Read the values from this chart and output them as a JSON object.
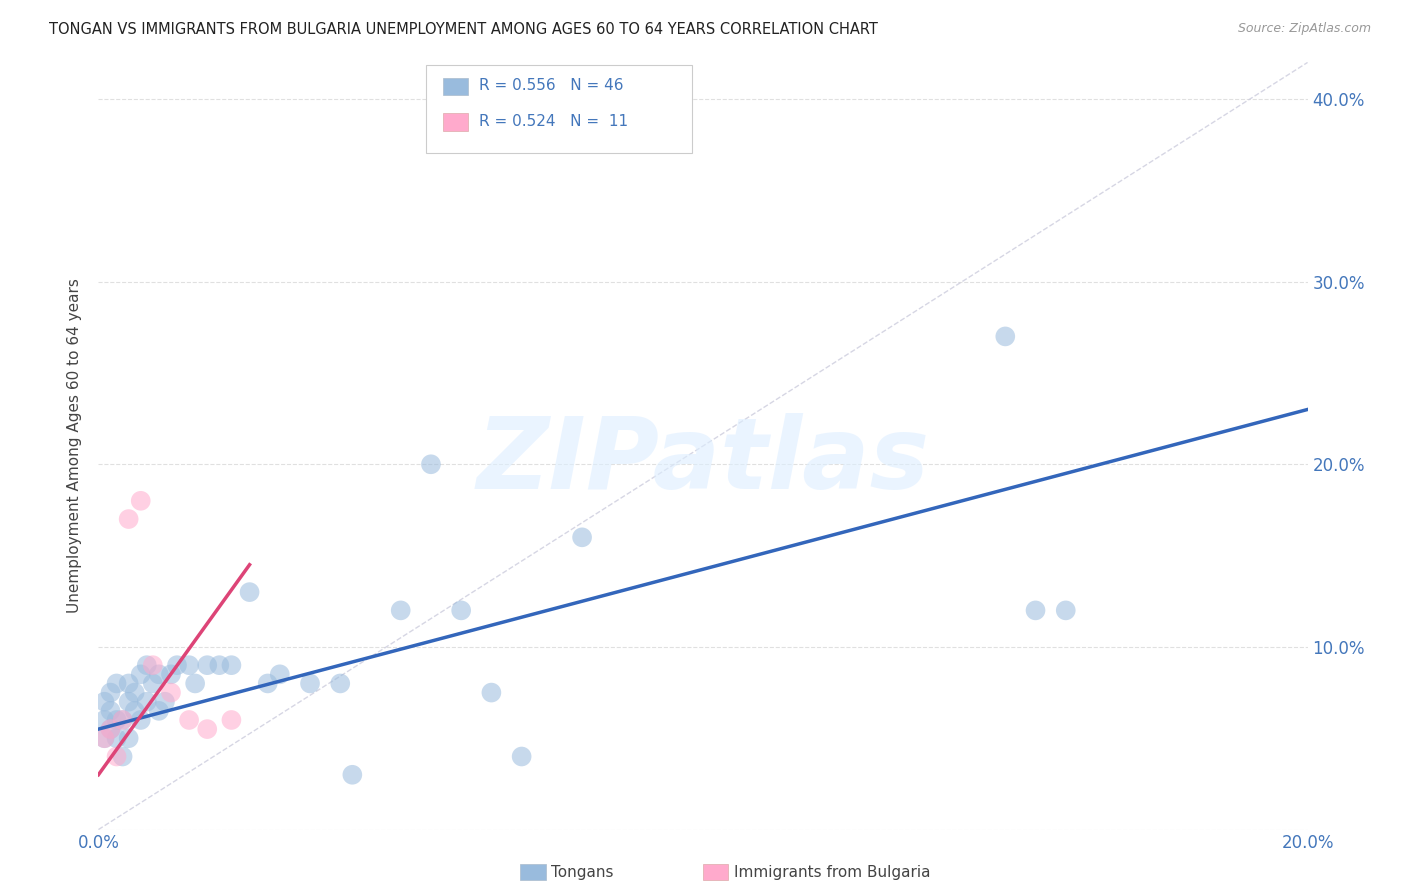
{
  "title": "TONGAN VS IMMIGRANTS FROM BULGARIA UNEMPLOYMENT AMONG AGES 60 TO 64 YEARS CORRELATION CHART",
  "source": "Source: ZipAtlas.com",
  "ylabel": "Unemployment Among Ages 60 to 64 years",
  "xlim": [
    0.0,
    0.2
  ],
  "ylim": [
    0.0,
    0.42
  ],
  "xticks": [
    0.0,
    0.04,
    0.08,
    0.12,
    0.16,
    0.2
  ],
  "yticks": [
    0.0,
    0.1,
    0.2,
    0.3,
    0.4
  ],
  "right_ytick_labels": [
    "",
    "10.0%",
    "20.0%",
    "30.0%",
    "40.0%"
  ],
  "left_ytick_labels": [
    "",
    "",
    "",
    "",
    ""
  ],
  "xtick_labels": [
    "0.0%",
    "",
    "",
    "",
    "",
    "20.0%"
  ],
  "blue_color": "#99BBDD",
  "pink_color": "#FFAACC",
  "blue_line_color": "#3366BB",
  "pink_line_color": "#DD4477",
  "ref_line_color": "#CCCCDD",
  "grid_color": "#DDDDDD",
  "bg_color": "#FFFFFF",
  "watermark": "ZIPatlas",
  "watermark_color": "#DDEEFF",
  "tongans_label": "Tongans",
  "bulgaria_label": "Immigrants from Bulgaria",
  "tongans_x": [
    0.001,
    0.001,
    0.001,
    0.002,
    0.002,
    0.002,
    0.003,
    0.003,
    0.003,
    0.004,
    0.004,
    0.005,
    0.005,
    0.005,
    0.006,
    0.006,
    0.007,
    0.007,
    0.008,
    0.008,
    0.009,
    0.01,
    0.01,
    0.011,
    0.012,
    0.013,
    0.015,
    0.016,
    0.018,
    0.02,
    0.022,
    0.025,
    0.028,
    0.03,
    0.035,
    0.04,
    0.042,
    0.05,
    0.055,
    0.06,
    0.065,
    0.07,
    0.08,
    0.15,
    0.155,
    0.16
  ],
  "tongans_y": [
    0.05,
    0.06,
    0.07,
    0.055,
    0.065,
    0.075,
    0.05,
    0.06,
    0.08,
    0.06,
    0.04,
    0.05,
    0.07,
    0.08,
    0.065,
    0.075,
    0.06,
    0.085,
    0.07,
    0.09,
    0.08,
    0.065,
    0.085,
    0.07,
    0.085,
    0.09,
    0.09,
    0.08,
    0.09,
    0.09,
    0.09,
    0.13,
    0.08,
    0.085,
    0.08,
    0.08,
    0.03,
    0.12,
    0.2,
    0.12,
    0.075,
    0.04,
    0.16,
    0.27,
    0.12,
    0.12
  ],
  "bulgaria_x": [
    0.001,
    0.002,
    0.003,
    0.004,
    0.005,
    0.007,
    0.009,
    0.012,
    0.015,
    0.018,
    0.022
  ],
  "bulgaria_y": [
    0.05,
    0.055,
    0.04,
    0.06,
    0.17,
    0.18,
    0.09,
    0.075,
    0.06,
    0.055,
    0.06
  ],
  "blue_line_x0": 0.0,
  "blue_line_y0": 0.055,
  "blue_line_x1": 0.2,
  "blue_line_y1": 0.23,
  "pink_line_x0": 0.0,
  "pink_line_y0": 0.03,
  "pink_line_x1": 0.025,
  "pink_line_y1": 0.145
}
